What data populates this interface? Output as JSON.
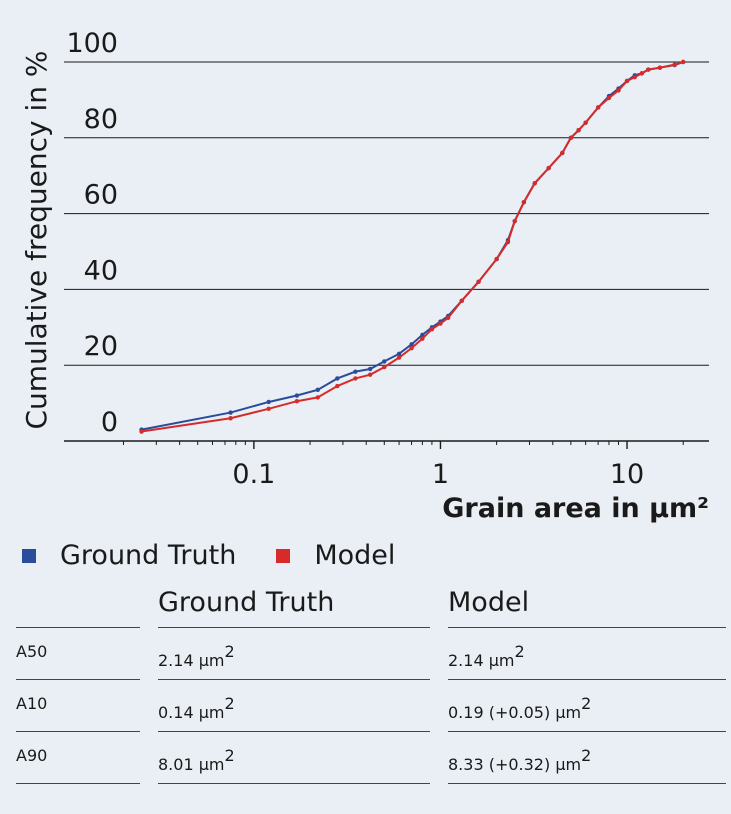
{
  "chart_data": {
    "type": "line",
    "xscale": "log",
    "xlim": [
      0.013,
      25
    ],
    "ylim": [
      0,
      100
    ],
    "xlabel": "Grain area in µm²",
    "ylabel": "Cumulative frequency in %",
    "yticks": [
      "0",
      "20",
      "40",
      "60",
      "80",
      "100"
    ],
    "xticks": [
      "0.1",
      "1",
      "10"
    ],
    "grid": "horizontal",
    "series": [
      {
        "name": "Ground Truth",
        "color": "#2b4c9b",
        "x": [
          0.025,
          0.075,
          0.12,
          0.17,
          0.22,
          0.28,
          0.35,
          0.42,
          0.5,
          0.6,
          0.7,
          0.8,
          0.9,
          1.0,
          1.1,
          1.3,
          1.6,
          2.0,
          2.3,
          2.5,
          2.8,
          3.2,
          3.8,
          4.5,
          5.0,
          5.5,
          6.0,
          7.0,
          8.0,
          9.0,
          10.0,
          11.0,
          12.0,
          13.0,
          15.0,
          18.0,
          20.0
        ],
        "y": [
          3,
          7.5,
          10.3,
          12,
          13.5,
          16.5,
          18.3,
          19,
          21,
          23,
          25.5,
          28,
          30,
          31.5,
          33,
          37,
          42,
          48,
          53,
          58,
          63,
          68,
          72,
          76,
          80,
          82,
          84,
          88,
          91,
          93,
          95,
          96.5,
          97,
          98,
          98.5,
          99.2,
          100
        ]
      },
      {
        "name": "Model",
        "color": "#d72b2a",
        "x": [
          0.025,
          0.075,
          0.12,
          0.17,
          0.22,
          0.28,
          0.35,
          0.42,
          0.5,
          0.6,
          0.7,
          0.8,
          0.9,
          1.0,
          1.1,
          1.3,
          1.6,
          2.0,
          2.3,
          2.5,
          2.8,
          3.2,
          3.8,
          4.5,
          5.0,
          5.5,
          6.0,
          7.0,
          8.0,
          9.0,
          10.0,
          11.0,
          12.0,
          13.0,
          15.0,
          18.0,
          20.0
        ],
        "y": [
          2.5,
          6,
          8.5,
          10.5,
          11.5,
          14.5,
          16.5,
          17.5,
          19.5,
          22,
          24.5,
          27,
          29.5,
          31,
          32.5,
          37,
          42,
          48,
          52.5,
          58,
          63,
          68,
          72,
          76,
          80,
          82,
          84,
          88,
          90.5,
          92.5,
          95,
          96,
          97,
          98,
          98.5,
          99.3,
          100
        ]
      }
    ]
  },
  "legend": [
    {
      "label": "Ground Truth",
      "color": "#2b4c9b"
    },
    {
      "label": "Model",
      "color": "#d72b2a"
    }
  ],
  "table": {
    "headers": [
      "",
      "Ground Truth",
      "Model"
    ],
    "unit": "µm",
    "unit_exp": "2",
    "rows": [
      {
        "label": "A50",
        "gt": "2.14",
        "model": "2.14"
      },
      {
        "label": "A10",
        "gt": "0.14",
        "model": "0.19 (+0.05)"
      },
      {
        "label": "A90",
        "gt": "8.01",
        "model": "8.33 (+0.32)"
      }
    ]
  }
}
